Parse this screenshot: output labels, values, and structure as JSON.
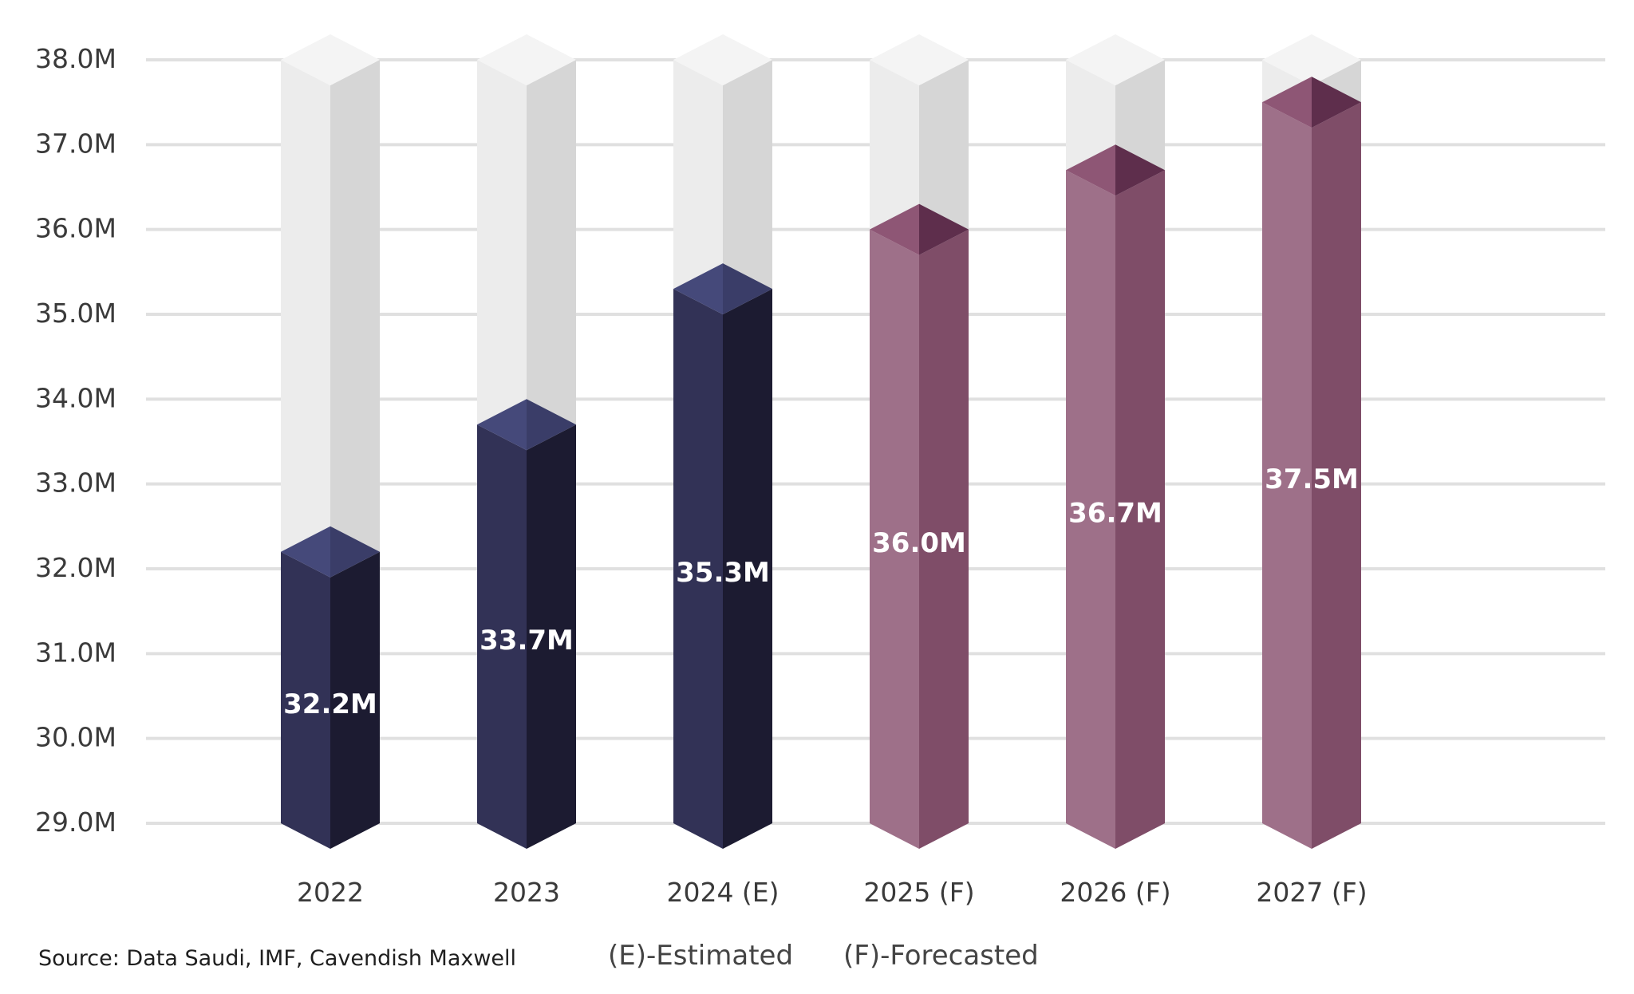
{
  "chart_data": {
    "type": "bar",
    "categories": [
      "2022",
      "2023",
      "2024 (E)",
      "2025 (F)",
      "2026 (F)",
      "2027 (F)"
    ],
    "values": [
      32.2,
      33.7,
      35.3,
      36.0,
      36.7,
      37.5
    ],
    "value_labels": [
      "32.2M",
      "33.7M",
      "35.3M",
      "36.0M",
      "36.7M",
      "37.5M"
    ],
    "ylim": [
      29.0,
      38.0
    ],
    "yticks": [
      {
        "value": 38,
        "label": "38.0M"
      },
      {
        "value": 37,
        "label": "37.0M"
      },
      {
        "value": 36,
        "label": "36.0M"
      },
      {
        "value": 35,
        "label": "35.0M"
      },
      {
        "value": 34,
        "label": "34.0M"
      },
      {
        "value": 33,
        "label": "33.0M"
      },
      {
        "value": 32,
        "label": "32.0M"
      },
      {
        "value": 31,
        "label": "31.0M"
      },
      {
        "value": 30,
        "label": "30.0M"
      },
      {
        "value": 29,
        "label": "29.0M"
      }
    ],
    "grid": true,
    "title": "",
    "xlabel": "",
    "ylabel": "",
    "bar_status": [
      "actual",
      "actual",
      "estimated",
      "forecast",
      "forecast",
      "forecast"
    ],
    "colors": {
      "actual_front": "#323256",
      "actual_side": "#1c1b31",
      "actual_top": "#45497a",
      "forecast_front": "#9e7089",
      "forecast_side": "#7f4d68",
      "forecast_top": "#8e5675",
      "forecast_top_dark": "#5e2e4c",
      "ghost_front": "#ececec",
      "ghost_side": "#d6d6d6",
      "ghost_top": "#f4f4f4",
      "grid": "#e0e0e0"
    }
  },
  "footer": {
    "source": "Source: Data Saudi, IMF, Cavendish Maxwell",
    "estimated_note": "(E)-Estimated",
    "forecasted_note": "(F)-Forecasted"
  }
}
